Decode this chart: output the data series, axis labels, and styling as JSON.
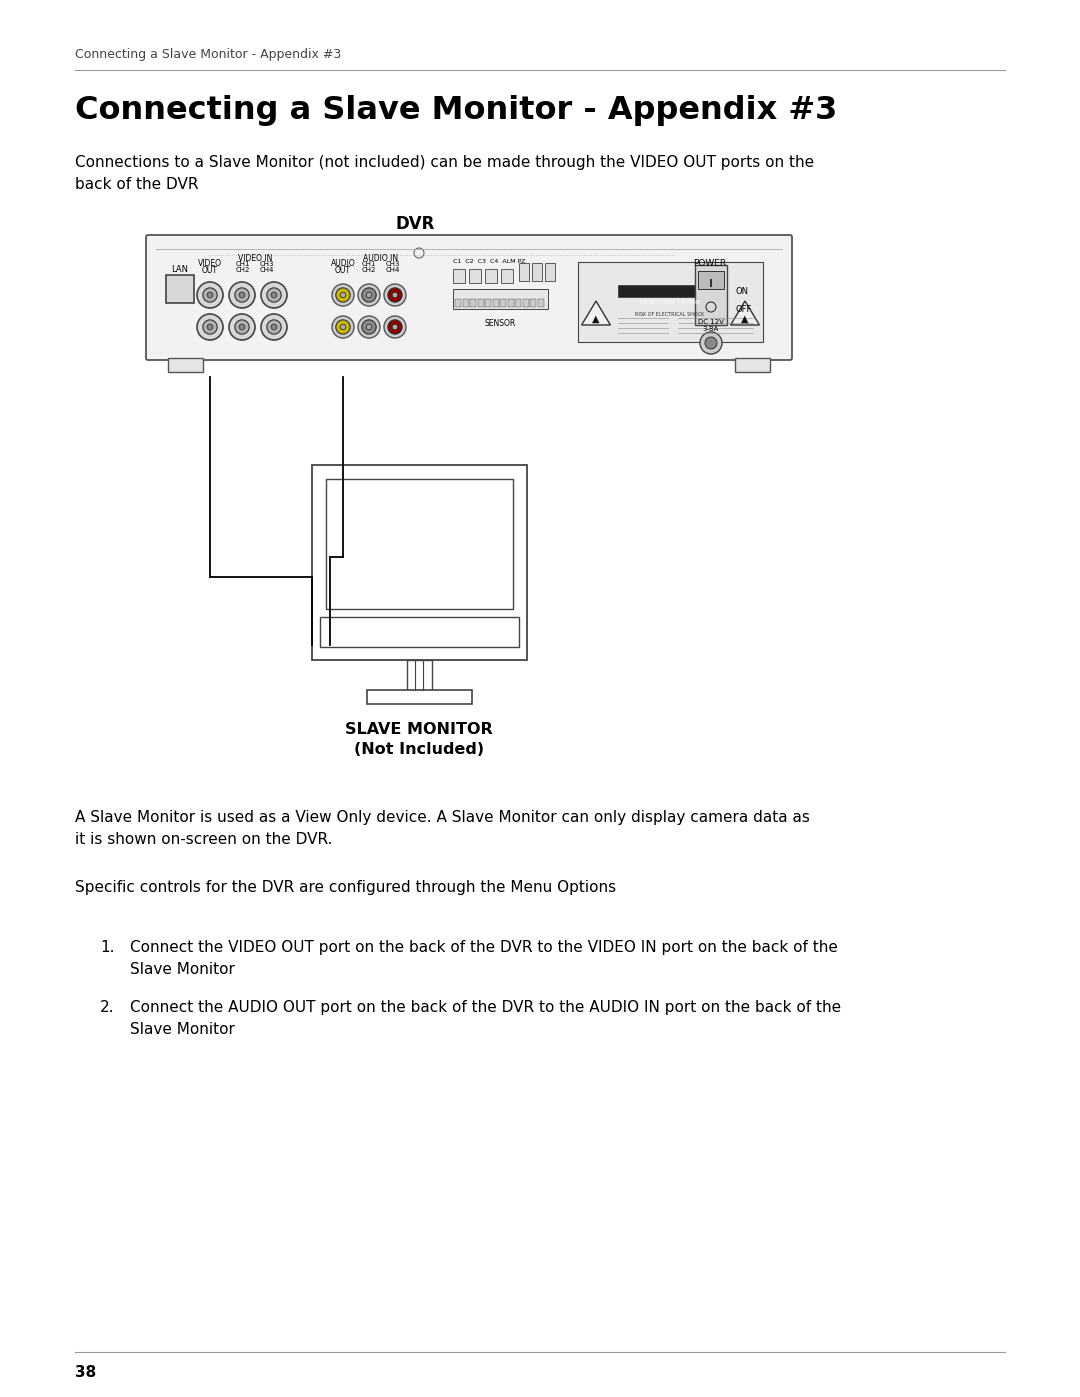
{
  "page_title_small": "Connecting a Slave Monitor - Appendix #3",
  "page_title_large": "Connecting a Slave Monitor - Appendix #3",
  "subtitle": "Connections to a Slave Monitor (not included) can be made through the VIDEO OUT ports on the\nback of the DVR",
  "dvr_label": "DVR",
  "slave_monitor_label1": "SLAVE MONITOR",
  "slave_monitor_label2": "(Not Included)",
  "para1": "A Slave Monitor is used as a View Only device. A Slave Monitor can only display camera data as\nit is shown on-screen on the DVR.",
  "para2": "Specific controls for the DVR are configured through the Menu Options",
  "item1_num": "1.",
  "item1_text": "Connect the VIDEO OUT port on the back of the DVR to the VIDEO IN port on the back of the\nSlave Monitor",
  "item2_num": "2.",
  "item2_text": "Connect the AUDIO OUT port on the back of the DVR to the AUDIO IN port on the back of the\nSlave Monitor",
  "page_number": "38",
  "bg_color": "#ffffff",
  "text_color": "#000000"
}
